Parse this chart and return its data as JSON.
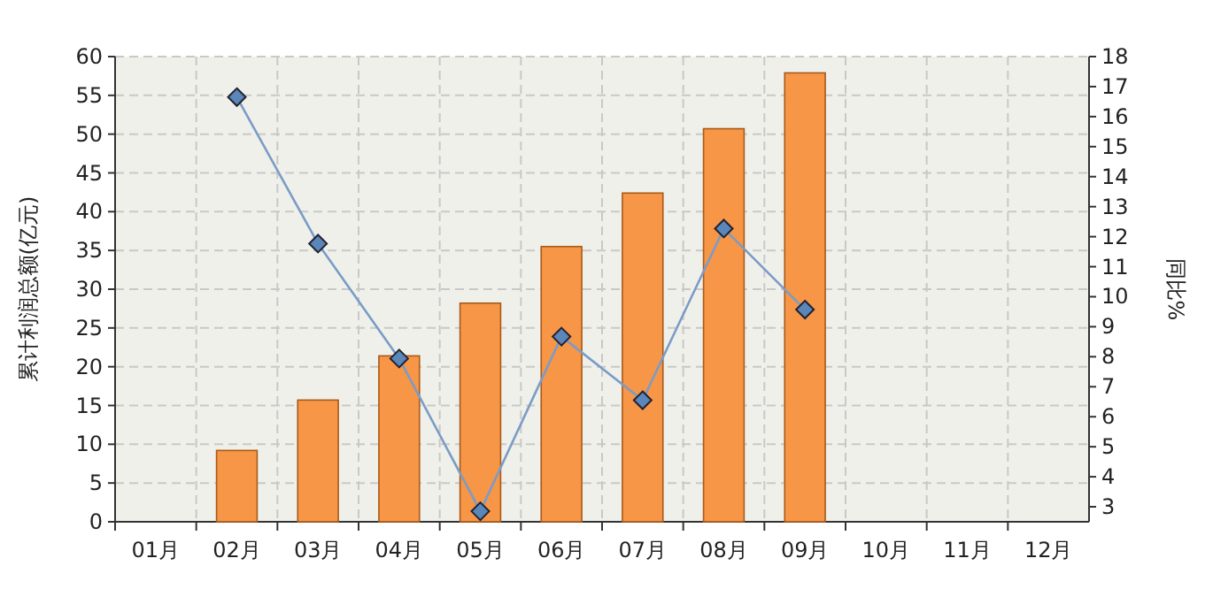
{
  "chart_data": {
    "type": "bar",
    "ylabel": "累计利润总额(亿元)",
    "y2label": "同比%",
    "categories": [
      "01月",
      "02月",
      "03月",
      "04月",
      "05月",
      "06月",
      "07月",
      "08月",
      "09月",
      "10月",
      "11月",
      "12月"
    ],
    "series": [
      {
        "color": "#f79646",
        "values": [
          null,
          9.2,
          15.7,
          21.4,
          28.2,
          35.5,
          42.4,
          50.7,
          57.9,
          null,
          null,
          null
        ]
      },
      {
        "type": "line",
        "axis": "y2",
        "color": "#7a9cc6",
        "marker": "diamond",
        "values": [
          null,
          16.65,
          11.77,
          7.94,
          2.85,
          8.67,
          6.55,
          12.27,
          9.57,
          null,
          null,
          null
        ]
      }
    ],
    "ylim": [
      0,
      60
    ],
    "yticks": [
      0,
      5,
      10,
      15,
      20,
      25,
      30,
      35,
      40,
      45,
      50,
      55,
      60
    ],
    "y2lim": [
      2.5,
      18
    ],
    "y2ticks": [
      3,
      4,
      5,
      6,
      7,
      8,
      9,
      10,
      11,
      12,
      13,
      14,
      15,
      16,
      17,
      18
    ],
    "grid": true
  }
}
